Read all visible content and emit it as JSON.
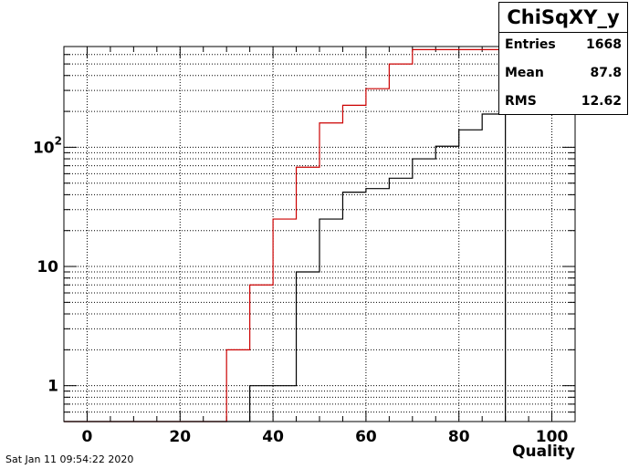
{
  "chart_data": {
    "type": "histogram-step",
    "title": "ChiSqXY_y",
    "xlabel": "Quality",
    "ylabel": "",
    "xlim": [
      -5,
      105
    ],
    "ylim": [
      0.5,
      700
    ],
    "yscale": "log",
    "grid": true,
    "x_ticks": [
      0,
      20,
      40,
      60,
      80,
      100
    ],
    "y_ticks": [
      {
        "value": 1,
        "mantissa": "1",
        "exponent": ""
      },
      {
        "value": 10,
        "mantissa": "10",
        "exponent": ""
      },
      {
        "value": 100,
        "mantissa": "10",
        "exponent": "2"
      }
    ],
    "series": [
      {
        "color": "#cc0000",
        "bins": [
          {
            "x0": 30,
            "x1": 35,
            "y": 2
          },
          {
            "x0": 35,
            "x1": 40,
            "y": 7
          },
          {
            "x0": 40,
            "x1": 45,
            "y": 25
          },
          {
            "x0": 45,
            "x1": 50,
            "y": 68
          },
          {
            "x0": 50,
            "x1": 55,
            "y": 160
          },
          {
            "x0": 55,
            "x1": 60,
            "y": 225
          },
          {
            "x0": 60,
            "x1": 65,
            "y": 310
          },
          {
            "x0": 65,
            "x1": 70,
            "y": 500
          },
          {
            "x0": 70,
            "x1": 105,
            "y": 660
          }
        ]
      },
      {
        "color": "#000000",
        "bins": [
          {
            "x0": 35,
            "x1": 40,
            "y": 1
          },
          {
            "x0": 40,
            "x1": 45,
            "y": 1
          },
          {
            "x0": 45,
            "x1": 50,
            "y": 9
          },
          {
            "x0": 50,
            "x1": 55,
            "y": 25
          },
          {
            "x0": 55,
            "x1": 60,
            "y": 42
          },
          {
            "x0": 60,
            "x1": 65,
            "y": 45
          },
          {
            "x0": 65,
            "x1": 70,
            "y": 55
          },
          {
            "x0": 70,
            "x1": 75,
            "y": 80
          },
          {
            "x0": 75,
            "x1": 80,
            "y": 102
          },
          {
            "x0": 80,
            "x1": 85,
            "y": 140
          },
          {
            "x0": 85,
            "x1": 90,
            "y": 190
          }
        ]
      }
    ]
  },
  "stats": {
    "title": "ChiSqXY_y",
    "entries_label": "Entries",
    "entries_value": "1668",
    "mean_label": "Mean",
    "mean_value": "87.8",
    "rms_label": "RMS",
    "rms_value": "12.62"
  },
  "footer": {
    "timestamp": "Sat Jan 11 09:54:22 2020"
  }
}
